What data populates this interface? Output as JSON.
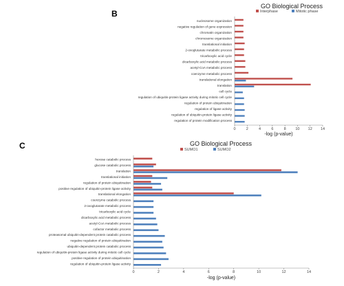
{
  "panels": [
    {
      "letter": "B"
    },
    {
      "letter": "C"
    }
  ],
  "chart_data": [
    {
      "type": "bar",
      "orientation": "horizontal",
      "title": "GO Biological Process",
      "xlabel": "-log (p-value)",
      "ylabel": "",
      "xlim": [
        0,
        14
      ],
      "xticks": [
        0,
        2,
        4,
        6,
        8,
        10,
        12,
        14
      ],
      "grid": false,
      "legend": "top",
      "categories": [
        "nucleosome organization",
        "negative regulation of gene expression",
        "chromatin organization",
        "chromosome organization",
        "translational initiation",
        "2-oxoglutarate metabolic process",
        "tricarboxylic acid cycle",
        "dicarboxylic acid metabolic process",
        "acetyl-CoA metabolic process",
        "coenzyme metabolic process",
        "translational elongation",
        "translation",
        "cell cycle",
        "regulation of ubiquitin-protein ligase activity during mitotic cell cycle",
        "regulation of protein ubiquitination",
        "regulation of ligase activity",
        "regulation of ubiquitin-protein ligase activity",
        "regulation of protein modification process"
      ],
      "series": [
        {
          "name": "Interphase",
          "color": "#c0504d",
          "values": [
            1.4,
            1.4,
            1.4,
            1.4,
            1.6,
            1.5,
            1.5,
            1.7,
            1.7,
            2.2,
            9.2,
            12.1,
            0,
            0,
            0,
            0,
            0,
            0
          ]
        },
        {
          "name": "Mitotic phase",
          "color": "#4f81bd",
          "values": [
            0,
            0,
            0,
            0,
            0,
            0,
            0,
            0,
            0,
            0,
            1.8,
            3.1,
            1.3,
            1.5,
            1.5,
            1.6,
            1.6,
            1.6
          ]
        }
      ]
    },
    {
      "type": "bar",
      "orientation": "horizontal",
      "title": "GO Biological Process",
      "xlabel": "-log (p-value)",
      "ylabel": "",
      "xlim": [
        0,
        14
      ],
      "xticks": [
        0,
        2,
        4,
        6,
        8,
        10,
        12,
        14
      ],
      "grid": false,
      "legend": "top",
      "categories": [
        "hexose catabolic process",
        "glucose catabolic process",
        "translation",
        "translational initiation",
        "regulation of protein ubiquitination",
        "positive regulation of ubiquitin-protein ligase activity",
        "translational elongation",
        "coenzyme catabolic process",
        "2-oxoglutarate metabolic process",
        "tricarboxylic acid cycle",
        "dicarboxylic acid metabolic process",
        "acetyl-CoA metabolic process",
        "cofactor metabolic process",
        "proteasomal ubiquitin-dependent protein catabolic process",
        "negative regulation of protein ubiquitination",
        "ubiquitin-dependent protein catabolic process",
        "regulation of ubiquitin-protein ligase activity during mitotic cell cycle",
        "positive regulation of protein ubiquitination",
        "regulation of ubiquitin-protein ligase activity"
      ],
      "series": [
        {
          "name": "SUMO1",
          "color": "#c0504d",
          "values": [
            1.5,
            1.8,
            11.8,
            1.5,
            1.4,
            1.5,
            8.0,
            0,
            0,
            0,
            0,
            0,
            0,
            0,
            0,
            0,
            0,
            0,
            0
          ]
        },
        {
          "name": "SUMO2",
          "color": "#4f81bd",
          "values": [
            0,
            1.6,
            13.1,
            2.7,
            2.2,
            2.3,
            10.2,
            1.6,
            1.6,
            1.6,
            1.8,
            1.9,
            2.0,
            2.5,
            2.3,
            2.4,
            2.6,
            2.8,
            2.2
          ]
        }
      ]
    }
  ]
}
